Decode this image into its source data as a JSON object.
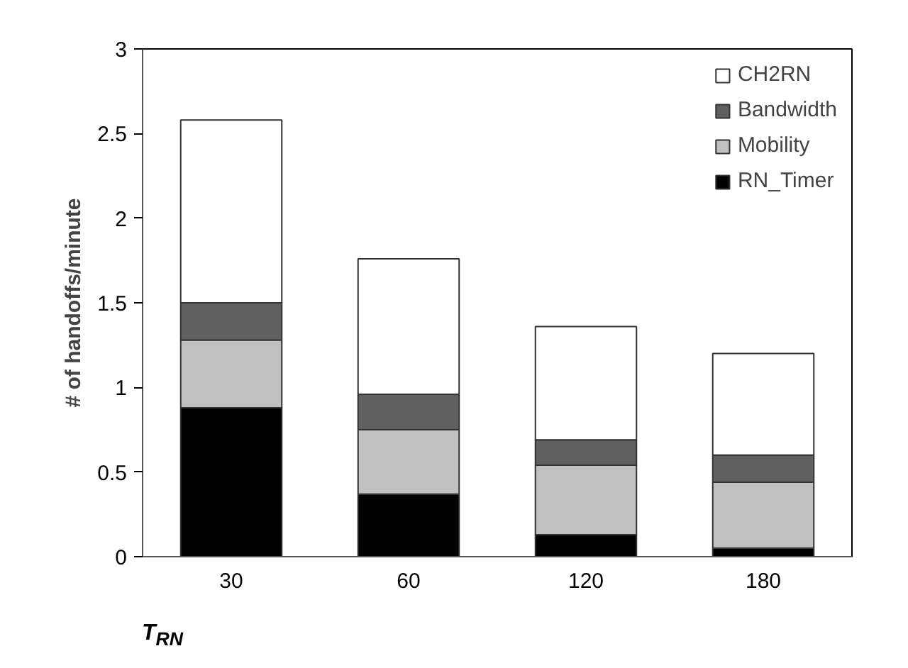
{
  "chart_data": {
    "type": "bar",
    "stacked": true,
    "xlabel": "T$_{RN}$",
    "ylabel": "# of handoffs/minute",
    "categories": [
      "30",
      "60",
      "120",
      "180"
    ],
    "series": [
      {
        "name": "RN_Timer",
        "color": "#000000",
        "values": [
          0.88,
          0.37,
          0.13,
          0.05
        ]
      },
      {
        "name": "Mobility",
        "color": "#c0c0c0",
        "values": [
          0.4,
          0.38,
          0.41,
          0.39
        ]
      },
      {
        "name": "Bandwidth",
        "color": "#606060",
        "values": [
          0.22,
          0.21,
          0.15,
          0.16
        ]
      },
      {
        "name": "CH2RN",
        "color": "#ffffff",
        "values": [
          1.08,
          0.8,
          0.67,
          0.6
        ]
      }
    ],
    "ylim": [
      0,
      3
    ],
    "yticks": [
      0,
      0.5,
      1,
      1.5,
      2,
      2.5,
      3
    ],
    "legend": "top right",
    "grid": false
  }
}
